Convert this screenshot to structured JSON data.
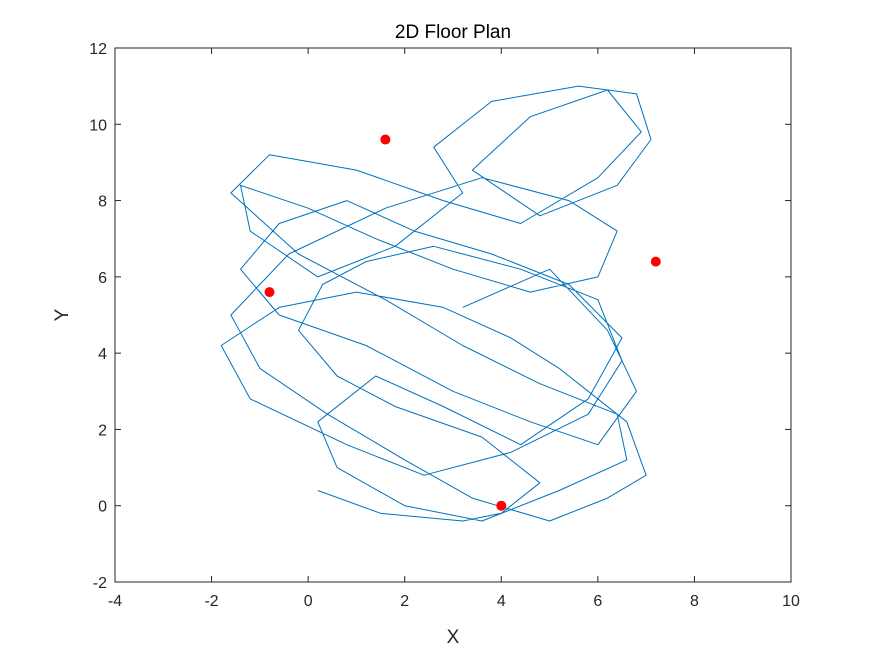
{
  "chart_data": {
    "type": "line",
    "title": "2D Floor Plan",
    "xlabel": "X",
    "ylabel": "Y",
    "xlim": [
      -4,
      10
    ],
    "ylim": [
      -2,
      12
    ],
    "xticks": [
      -4,
      -2,
      0,
      2,
      4,
      6,
      8,
      10
    ],
    "yticks": [
      -2,
      0,
      2,
      4,
      6,
      8,
      10,
      12
    ],
    "grid": false,
    "legend": "none",
    "series": [
      {
        "type": "line",
        "color": "#0072BD",
        "description": "trajectory",
        "x": [
          0.2,
          1.5,
          3.2,
          4.0,
          4.8,
          3.6,
          1.8,
          0.6,
          -0.2,
          0.3,
          1.2,
          2.6,
          4.4,
          6.0,
          6.5,
          5.8,
          4.2,
          2.4,
          0.8,
          -1.2,
          -1.8,
          -0.6,
          1.0,
          2.8,
          4.2,
          5.2,
          6.6,
          7.0,
          6.2,
          5.0,
          3.4,
          2.0,
          0.4,
          -1.0,
          -1.6,
          -0.4,
          1.6,
          3.6,
          5.4,
          6.4,
          6.0,
          4.6,
          3.0,
          1.4,
          0.0,
          -1.4,
          -1.2,
          0.2,
          1.8,
          3.2,
          2.6,
          3.8,
          5.6,
          6.8,
          7.1,
          6.4,
          4.8,
          3.4,
          4.6,
          6.2,
          6.9,
          6.0,
          4.4,
          2.8,
          1.0,
          -0.8,
          -1.6,
          -0.2,
          1.6,
          3.2,
          4.8,
          6.4,
          6.6,
          5.2,
          3.6,
          2.0,
          0.6,
          0.2,
          1.4,
          2.8,
          4.4,
          5.8,
          6.5,
          5.4,
          3.8,
          2.2,
          0.8,
          -0.6,
          -1.4,
          -0.6,
          1.2,
          3.0,
          4.6,
          6.0,
          6.8,
          6.2,
          5.0,
          3.2
        ],
        "y": [
          0.4,
          -0.2,
          -0.4,
          -0.2,
          0.6,
          1.8,
          2.6,
          3.4,
          4.6,
          5.8,
          6.4,
          6.8,
          6.2,
          5.4,
          3.8,
          2.4,
          1.4,
          0.8,
          1.6,
          2.8,
          4.2,
          5.2,
          5.6,
          5.2,
          4.4,
          3.6,
          2.2,
          0.8,
          0.2,
          -0.4,
          0.2,
          1.2,
          2.4,
          3.6,
          5.0,
          6.6,
          7.8,
          8.6,
          8.0,
          7.2,
          6.0,
          5.6,
          6.2,
          7.0,
          7.8,
          8.4,
          7.2,
          6.0,
          6.8,
          8.2,
          9.4,
          10.6,
          11.0,
          10.8,
          9.6,
          8.4,
          7.6,
          8.8,
          10.2,
          10.9,
          9.8,
          8.6,
          7.4,
          8.0,
          8.8,
          9.2,
          8.2,
          6.6,
          5.4,
          4.2,
          3.2,
          2.4,
          1.2,
          0.4,
          -0.4,
          0.0,
          1.0,
          2.2,
          3.4,
          2.6,
          1.6,
          2.8,
          4.4,
          5.8,
          6.6,
          7.2,
          8.0,
          7.4,
          6.2,
          5.0,
          4.2,
          3.0,
          2.2,
          1.6,
          3.0,
          4.6,
          6.2,
          5.2
        ]
      },
      {
        "type": "scatter",
        "color": "#FF0000",
        "description": "markers",
        "x": [
          1.6,
          -0.8,
          7.2,
          4.0
        ],
        "y": [
          9.6,
          5.6,
          6.4,
          0.0
        ]
      }
    ]
  }
}
